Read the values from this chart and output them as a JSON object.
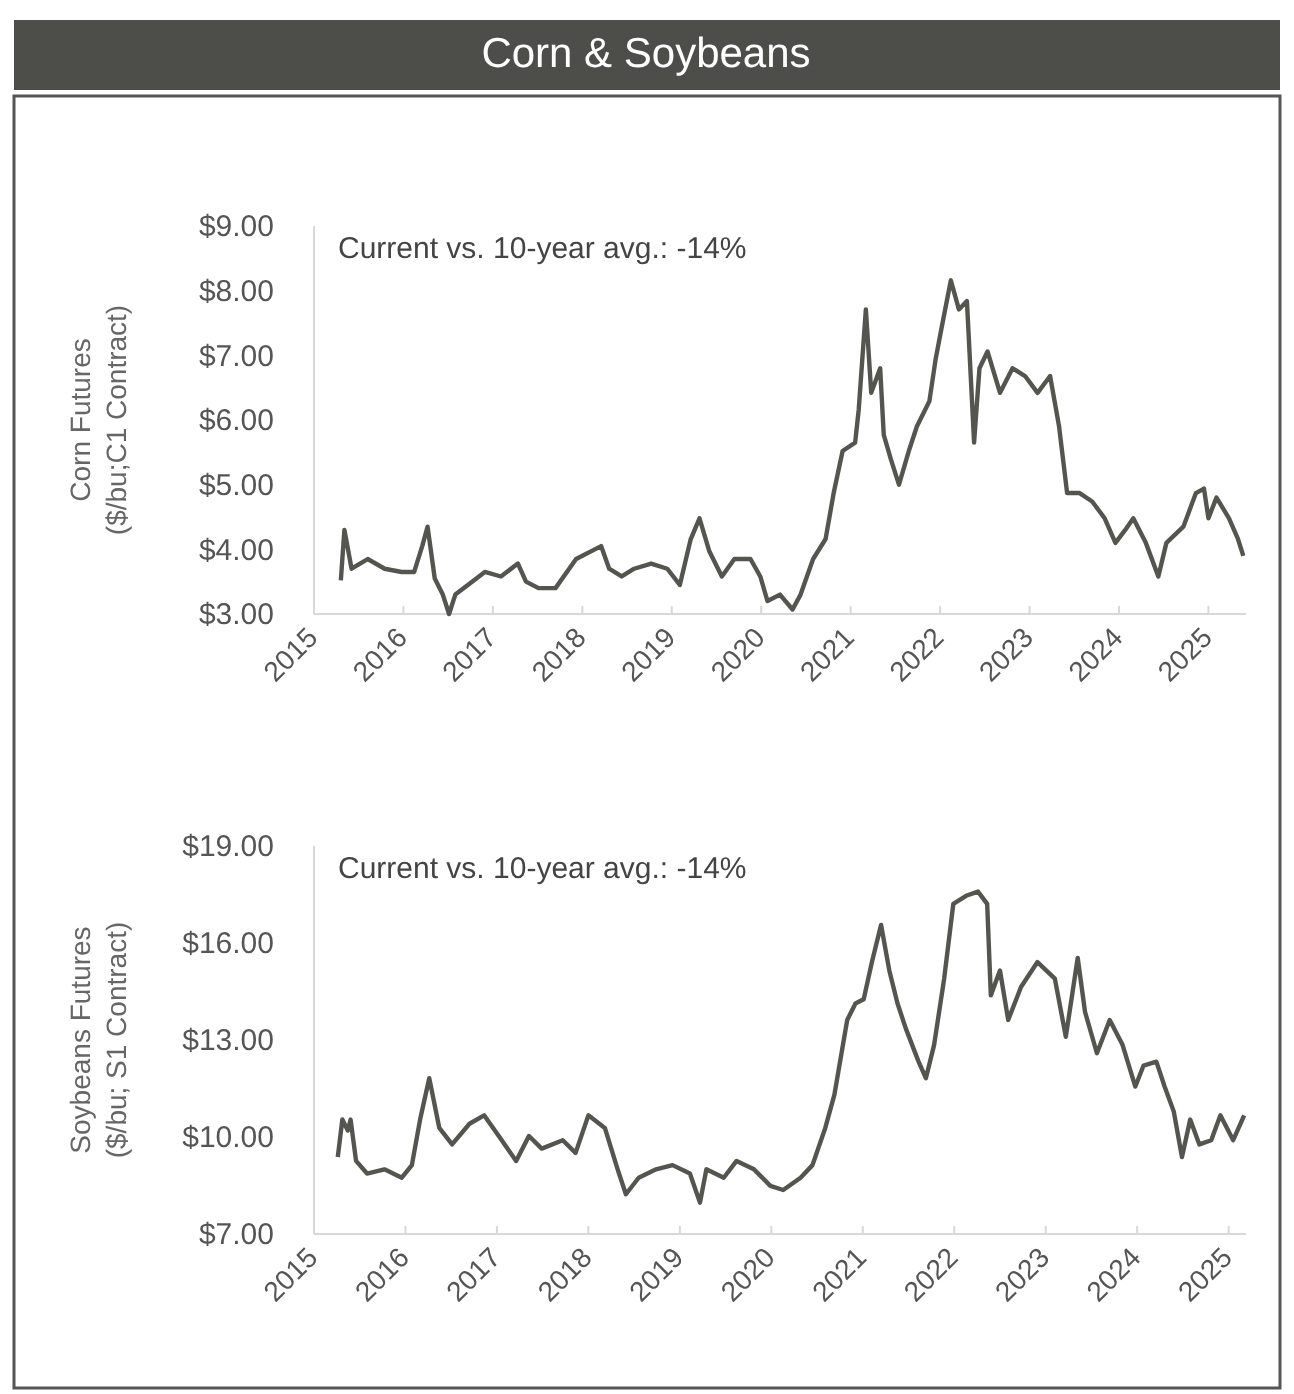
{
  "chart_data": [
    {
      "type": "line",
      "title": "Corn & Soybeans",
      "ylabel": "Corn Futures\n($/bu;C1 Contract)",
      "annotations": [
        "Current vs. 10-year avg.: -14%"
      ],
      "xlim": [
        2015,
        2025.42
      ],
      "xticks": [
        2015,
        2016,
        2017,
        2018,
        2019,
        2020,
        2021,
        2022,
        2023,
        2024,
        2025
      ],
      "ylim": [
        3,
        9
      ],
      "yticks": [
        {
          "value": 3,
          "label": "$3.00"
        },
        {
          "value": 4,
          "label": "$4.00"
        },
        {
          "value": 5,
          "label": "$5.00"
        },
        {
          "value": 6,
          "label": "$6.00"
        },
        {
          "value": 7,
          "label": "$7.00"
        },
        {
          "value": 8,
          "label": "$8.00"
        },
        {
          "value": 9,
          "label": "$9.00"
        }
      ],
      "grid": false,
      "series": [
        {
          "color": "#555550",
          "x": [
            2015.3,
            2015.34,
            2015.42,
            2015.6,
            2015.79,
            2015.98,
            2016.12,
            2016.21,
            2016.27,
            2016.35,
            2016.44,
            2016.51,
            2016.58,
            2016.72,
            2016.91,
            2017.09,
            2017.28,
            2017.37,
            2017.51,
            2017.7,
            2017.93,
            2018.21,
            2018.3,
            2018.44,
            2018.58,
            2018.77,
            2018.95,
            2019.09,
            2019.21,
            2019.31,
            2019.42,
            2019.56,
            2019.7,
            2019.88,
            2019.99,
            2020.07,
            2020.21,
            2020.35,
            2020.44,
            2020.58,
            2020.72,
            2020.81,
            2020.91,
            2021.05,
            2021.09,
            2021.17,
            2021.23,
            2021.33,
            2021.37,
            2021.45,
            2021.54,
            2021.65,
            2021.74,
            2021.88,
            2021.95,
            2022.02,
            2022.12,
            2022.21,
            2022.3,
            2022.38,
            2022.44,
            2022.53,
            2022.67,
            2022.81,
            2022.95,
            2023.09,
            2023.23,
            2023.33,
            2023.42,
            2023.56,
            2023.7,
            2023.84,
            2023.96,
            2024.07,
            2024.16,
            2024.3,
            2024.44,
            2024.53,
            2024.72,
            2024.86,
            2024.95,
            2025.0,
            2025.09,
            2025.23,
            2025.33,
            2025.39
          ],
          "values": [
            3.52,
            4.3,
            3.7,
            3.85,
            3.7,
            3.65,
            3.65,
            4.05,
            4.35,
            3.55,
            3.3,
            3.0,
            3.3,
            3.45,
            3.65,
            3.58,
            3.78,
            3.5,
            3.4,
            3.4,
            3.85,
            4.05,
            3.7,
            3.58,
            3.7,
            3.78,
            3.7,
            3.45,
            4.15,
            4.48,
            3.97,
            3.58,
            3.85,
            3.85,
            3.58,
            3.2,
            3.3,
            3.07,
            3.3,
            3.85,
            4.16,
            4.87,
            5.52,
            5.65,
            6.16,
            7.71,
            6.42,
            6.8,
            5.77,
            5.39,
            5.0,
            5.52,
            5.9,
            6.29,
            6.94,
            7.45,
            8.16,
            7.71,
            7.84,
            5.65,
            6.8,
            7.06,
            6.42,
            6.8,
            6.68,
            6.42,
            6.68,
            5.9,
            4.87,
            4.87,
            4.74,
            4.48,
            4.1,
            4.3,
            4.48,
            4.1,
            3.58,
            4.1,
            4.35,
            4.87,
            4.94,
            4.48,
            4.8,
            4.48,
            4.16,
            3.9
          ]
        }
      ]
    },
    {
      "type": "line",
      "ylabel": "Soybeans Futures\n($/bu; S1 Contract)",
      "annotations": [
        "Current vs. 10-year avg.: -14%"
      ],
      "xlim": [
        2015,
        2025.19
      ],
      "xticks": [
        2015,
        2016,
        2017,
        2018,
        2019,
        2020,
        2021,
        2022,
        2023,
        2024,
        2025
      ],
      "ylim": [
        7,
        19
      ],
      "yticks": [
        {
          "value": 7,
          "label": "$7.00"
        },
        {
          "value": 10,
          "label": "$10.00"
        },
        {
          "value": 13,
          "label": "$13.00"
        },
        {
          "value": 16,
          "label": "$16.00"
        },
        {
          "value": 19,
          "label": "$19.00"
        }
      ],
      "grid": false,
      "series": [
        {
          "color": "#555550",
          "x": [
            2015.26,
            2015.31,
            2015.37,
            2015.4,
            2015.46,
            2015.58,
            2015.77,
            2015.96,
            2016.07,
            2016.16,
            2016.26,
            2016.37,
            2016.51,
            2016.7,
            2016.86,
            2017.02,
            2017.21,
            2017.35,
            2017.49,
            2017.72,
            2017.86,
            2018.0,
            2018.18,
            2018.32,
            2018.41,
            2018.55,
            2018.74,
            2018.92,
            2019.11,
            2019.22,
            2019.29,
            2019.48,
            2019.62,
            2019.81,
            2019.99,
            2020.13,
            2020.32,
            2020.45,
            2020.59,
            2020.69,
            2020.83,
            2020.92,
            2021.01,
            2021.1,
            2021.2,
            2021.29,
            2021.38,
            2021.47,
            2021.61,
            2021.69,
            2021.78,
            2021.89,
            2021.99,
            2022.13,
            2022.26,
            2022.36,
            2022.4,
            2022.5,
            2022.59,
            2022.73,
            2022.91,
            2023.1,
            2023.22,
            2023.35,
            2023.43,
            2023.56,
            2023.7,
            2023.84,
            2023.98,
            2024.07,
            2024.21,
            2024.3,
            2024.4,
            2024.49,
            2024.58,
            2024.68,
            2024.81,
            2024.91,
            2025.05,
            2025.17
          ],
          "values": [
            9.38,
            10.54,
            10.2,
            10.54,
            9.26,
            8.87,
            9.0,
            8.74,
            9.13,
            10.54,
            11.82,
            10.28,
            9.77,
            10.41,
            10.67,
            10.03,
            9.26,
            10.03,
            9.64,
            9.9,
            9.51,
            10.67,
            10.28,
            9.0,
            8.23,
            8.74,
            9.0,
            9.13,
            8.87,
            7.97,
            9.0,
            8.74,
            9.26,
            9.0,
            8.49,
            8.36,
            8.74,
            9.13,
            10.28,
            11.31,
            13.62,
            14.13,
            14.26,
            15.41,
            16.56,
            15.15,
            14.13,
            13.36,
            12.33,
            11.82,
            12.85,
            14.9,
            17.21,
            17.46,
            17.59,
            17.21,
            14.38,
            15.15,
            13.62,
            14.64,
            15.41,
            14.9,
            13.1,
            15.54,
            13.87,
            12.59,
            13.62,
            12.85,
            11.56,
            12.21,
            12.33,
            11.56,
            10.79,
            9.38,
            10.54,
            9.77,
            9.9,
            10.67,
            9.9,
            10.67
          ]
        }
      ]
    }
  ]
}
